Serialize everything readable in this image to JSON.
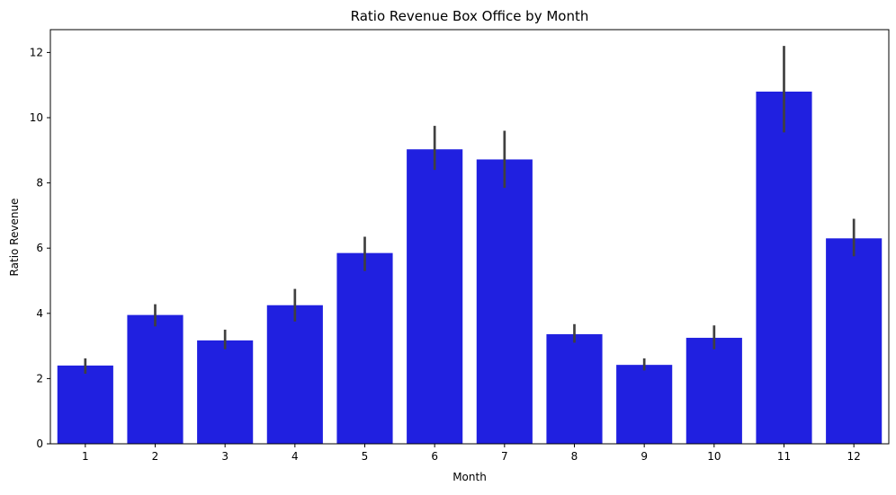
{
  "chart_data": {
    "type": "bar",
    "title": "Ratio Revenue Box Office by Month",
    "xlabel": "Month",
    "ylabel": "Ratio Revenue",
    "categories": [
      "1",
      "2",
      "3",
      "4",
      "5",
      "6",
      "7",
      "8",
      "9",
      "10",
      "11",
      "12"
    ],
    "values": [
      2.4,
      3.95,
      3.17,
      4.25,
      5.85,
      9.03,
      8.72,
      3.36,
      2.42,
      3.25,
      10.8,
      6.3
    ],
    "error_low": [
      2.15,
      3.6,
      2.9,
      3.75,
      5.3,
      8.4,
      7.85,
      3.1,
      2.25,
      2.9,
      9.55,
      5.75
    ],
    "error_high": [
      2.62,
      4.28,
      3.5,
      4.75,
      6.35,
      9.75,
      9.6,
      3.67,
      2.62,
      3.63,
      12.2,
      6.9
    ],
    "ylim": [
      0,
      12.7
    ],
    "yticks": [
      0,
      2,
      4,
      6,
      8,
      10,
      12
    ],
    "grid": false,
    "legend": "none",
    "bar_color": "#2020e0",
    "error_color": "#404040"
  }
}
